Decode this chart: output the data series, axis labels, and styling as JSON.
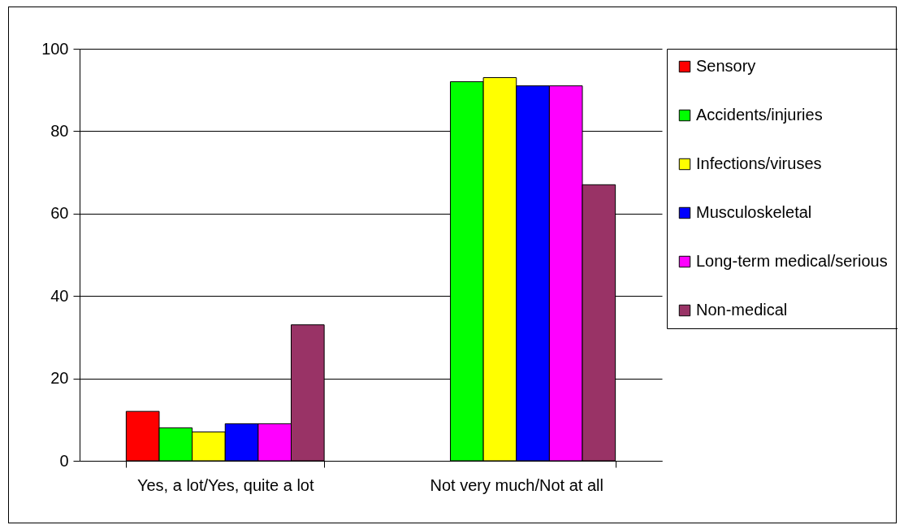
{
  "chart_data": {
    "type": "bar",
    "categories": [
      "Yes, a lot/Yes, quite a lot",
      "Not very much/Not at all"
    ],
    "series": [
      {
        "name": "Sensory",
        "color": "#ff0000",
        "values": [
          12,
          null
        ]
      },
      {
        "name": "Accidents/injuries",
        "color": "#00ff00",
        "values": [
          8,
          92
        ]
      },
      {
        "name": "Infections/viruses",
        "color": "#ffff00",
        "values": [
          7,
          93
        ]
      },
      {
        "name": "Musculoskeletal",
        "color": "#0000ff",
        "values": [
          9,
          91
        ]
      },
      {
        "name": "Long-term medical/serious",
        "color": "#ff00ff",
        "values": [
          9,
          91
        ]
      },
      {
        "name": "Non-medical",
        "color": "#993366",
        "values": [
          33,
          67
        ]
      }
    ],
    "ylim": [
      0,
      100
    ],
    "yticks": [
      0,
      20,
      40,
      60,
      80,
      100
    ],
    "grid": "y",
    "legend": "right"
  }
}
